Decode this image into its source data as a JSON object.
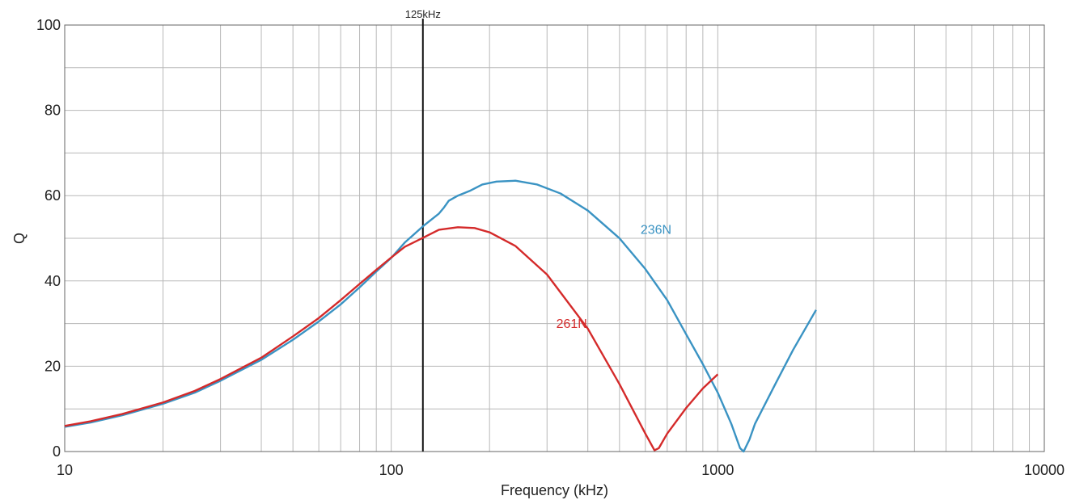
{
  "chart_data": {
    "type": "line",
    "xlabel": "Frequency (kHz)",
    "ylabel": "Q",
    "xscale": "log",
    "xlim": [
      10,
      10000
    ],
    "ylim": [
      0,
      100
    ],
    "grid": true,
    "x_tick_labels": [
      "10",
      "100",
      "1000",
      "10000"
    ],
    "y_tick_labels": [
      "0",
      "20",
      "40",
      "60",
      "80",
      "100"
    ],
    "y_ticks": [
      0,
      20,
      40,
      60,
      80,
      100
    ],
    "x_ticks": [
      10,
      100,
      1000,
      10000
    ],
    "vline": {
      "x": 125,
      "label": "125kHz",
      "color": "#111111"
    },
    "series": [
      {
        "name": "236N",
        "color": "#3a93c3",
        "points": [
          [
            10,
            5.8
          ],
          [
            12,
            6.8
          ],
          [
            15,
            8.5
          ],
          [
            20,
            11.2
          ],
          [
            25,
            13.8
          ],
          [
            30,
            16.6
          ],
          [
            40,
            21.5
          ],
          [
            50,
            26.2
          ],
          [
            60,
            30.5
          ],
          [
            70,
            34.5
          ],
          [
            80,
            38.5
          ],
          [
            90,
            42.2
          ],
          [
            100,
            45.4
          ],
          [
            110,
            49.0
          ],
          [
            125,
            52.8
          ],
          [
            140,
            55.8
          ],
          [
            145,
            57.2
          ],
          [
            150,
            58.8
          ],
          [
            160,
            60.0
          ],
          [
            175,
            61.2
          ],
          [
            190,
            62.6
          ],
          [
            210,
            63.3
          ],
          [
            240,
            63.5
          ],
          [
            280,
            62.6
          ],
          [
            330,
            60.5
          ],
          [
            400,
            56.5
          ],
          [
            500,
            50.0
          ],
          [
            600,
            42.8
          ],
          [
            700,
            35.5
          ],
          [
            800,
            27.5
          ],
          [
            900,
            20.5
          ],
          [
            1000,
            13.8
          ],
          [
            1100,
            6.5
          ],
          [
            1170,
            0.8
          ],
          [
            1200,
            0.0
          ],
          [
            1250,
            2.8
          ],
          [
            1300,
            6.5
          ],
          [
            1500,
            15.8
          ],
          [
            1700,
            23.8
          ],
          [
            2000,
            33.2
          ]
        ]
      },
      {
        "name": "261N",
        "color": "#d42a2a",
        "points": [
          [
            10,
            6.0
          ],
          [
            12,
            7.1
          ],
          [
            15,
            8.8
          ],
          [
            20,
            11.5
          ],
          [
            25,
            14.2
          ],
          [
            30,
            17.0
          ],
          [
            40,
            22.0
          ],
          [
            50,
            27.0
          ],
          [
            60,
            31.3
          ],
          [
            70,
            35.5
          ],
          [
            80,
            39.3
          ],
          [
            90,
            42.6
          ],
          [
            100,
            45.5
          ],
          [
            110,
            48.0
          ],
          [
            125,
            50.1
          ],
          [
            140,
            52.0
          ],
          [
            160,
            52.6
          ],
          [
            180,
            52.4
          ],
          [
            200,
            51.4
          ],
          [
            240,
            48.2
          ],
          [
            300,
            41.5
          ],
          [
            400,
            28.8
          ],
          [
            500,
            15.8
          ],
          [
            600,
            4.2
          ],
          [
            640,
            0.3
          ],
          [
            660,
            0.8
          ],
          [
            700,
            4.2
          ],
          [
            800,
            10.2
          ],
          [
            900,
            14.8
          ],
          [
            1000,
            18.1
          ]
        ]
      }
    ],
    "series_labels": [
      {
        "text": "236N",
        "x": 580,
        "y": 51,
        "color": "#3a93c3"
      },
      {
        "text": "261N",
        "x": 320,
        "y": 29,
        "color": "#d42a2a"
      }
    ]
  }
}
